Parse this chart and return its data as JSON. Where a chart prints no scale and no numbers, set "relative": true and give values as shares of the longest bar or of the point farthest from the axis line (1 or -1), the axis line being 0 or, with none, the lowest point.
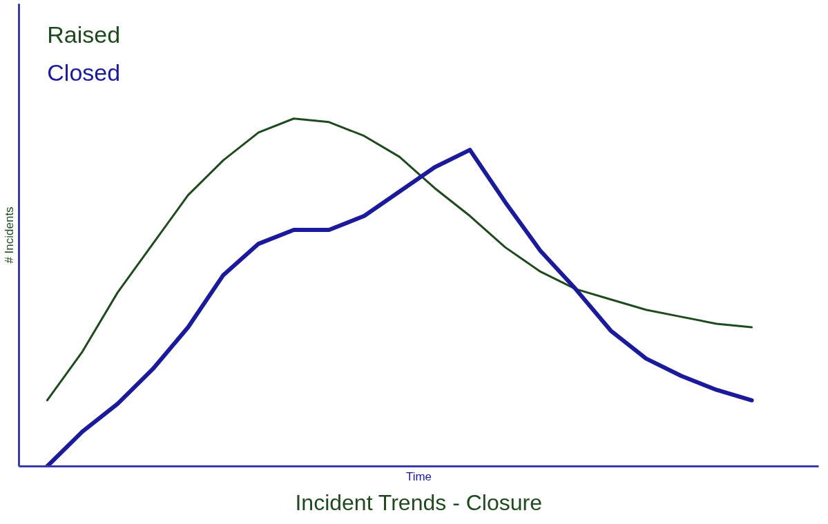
{
  "chart_data": {
    "type": "line",
    "title": "Incident Trends - Closure",
    "xlabel": "Time",
    "ylabel": "# Incidents",
    "relative": true,
    "legend": "top left",
    "marker": "none",
    "line_style": "solid",
    "categories": [
      null,
      null,
      null,
      null,
      null,
      null,
      null,
      null,
      null,
      null,
      null,
      null,
      null,
      null,
      null,
      null,
      null,
      null,
      null,
      null,
      null
    ],
    "series": [
      {
        "name": "Raised",
        "color": "#1e4a1e",
        "values": [
          0.19,
          0.33,
          0.5,
          0.64,
          0.78,
          0.88,
          0.96,
          1,
          0.99,
          0.95,
          0.89,
          0.8,
          0.72,
          0.63,
          0.56,
          0.51,
          0.48,
          0.45,
          0.43,
          0.41,
          0.4
        ]
      },
      {
        "name": "Closed",
        "color": "#1a1a9a",
        "values": [
          0,
          0.1,
          0.18,
          0.28,
          0.4,
          0.55,
          0.64,
          0.68,
          0.68,
          0.72,
          0.79,
          0.86,
          0.91,
          0.76,
          0.62,
          0.51,
          0.39,
          0.31,
          0.26,
          0.22,
          0.19
        ]
      }
    ]
  }
}
